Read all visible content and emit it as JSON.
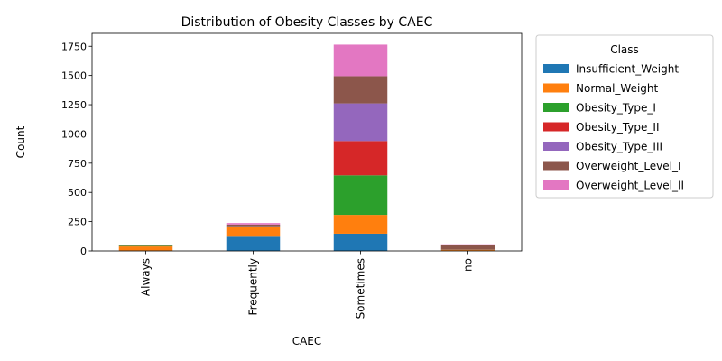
{
  "chart_data": {
    "type": "bar",
    "stacked": true,
    "title": "Distribution of Obesity Classes by CAEC",
    "xlabel": "CAEC",
    "ylabel": "Count",
    "categories": [
      "Always",
      "Frequently",
      "Sometimes",
      "no"
    ],
    "ylim": [
      0,
      1860
    ],
    "yticks": [
      0,
      250,
      500,
      750,
      1000,
      1250,
      1500,
      1750
    ],
    "legend_title": "Class",
    "legend_position": "outside-right",
    "series": [
      {
        "name": "Insufficient_Weight",
        "color": "#1f77b4",
        "values": [
          2,
          121,
          147,
          2
        ]
      },
      {
        "name": "Normal_Weight",
        "color": "#ff7f0e",
        "values": [
          36,
          83,
          161,
          7
        ]
      },
      {
        "name": "Obesity_Type_I",
        "color": "#2ca02c",
        "values": [
          6,
          6,
          338,
          1
        ]
      },
      {
        "name": "Obesity_Type_II",
        "color": "#d62728",
        "values": [
          2,
          1,
          293,
          1
        ]
      },
      {
        "name": "Obesity_Type_III",
        "color": "#9467bd",
        "values": [
          1,
          1,
          322,
          0
        ]
      },
      {
        "name": "Overweight_Level_I",
        "color": "#8c564b",
        "values": [
          3,
          13,
          233,
          41
        ]
      },
      {
        "name": "Overweight_Level_II",
        "color": "#e377c2",
        "values": [
          3,
          13,
          270,
          4
        ]
      }
    ]
  }
}
